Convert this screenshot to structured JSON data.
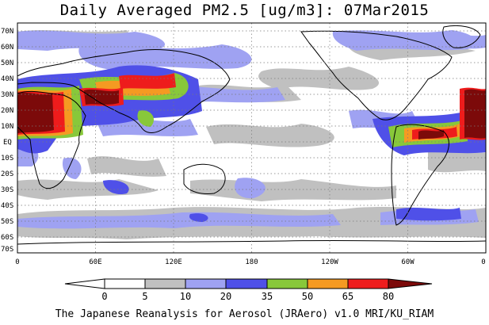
{
  "title": "Daily Averaged PM2.5 [ug/m3]: 07Mar2015",
  "footer": "The Japanese Reanalysis for Aerosol (JRAero) v1.0 MRI/KU_RIAM",
  "lat_labels": [
    "70N",
    "60N",
    "50N",
    "40N",
    "30N",
    "20N",
    "10N",
    "EQ",
    "10S",
    "20S",
    "30S",
    "40S",
    "50S",
    "60S",
    "70S"
  ],
  "lon_labels": [
    "0",
    "60E",
    "120E",
    "180",
    "120W",
    "60W",
    "0"
  ],
  "colorbar": {
    "labels": [
      "0",
      "5",
      "10",
      "20",
      "35",
      "50",
      "65",
      "80"
    ],
    "colors": [
      "#ffffff",
      "#c0c0c0",
      "#9fa2f2",
      "#4f50e8",
      "#88c83a",
      "#f59a22",
      "#ee1c1c",
      "#7c0a0a"
    ]
  },
  "colors": {
    "land_outline": "#000000",
    "grid": "#7a7a7a"
  }
}
